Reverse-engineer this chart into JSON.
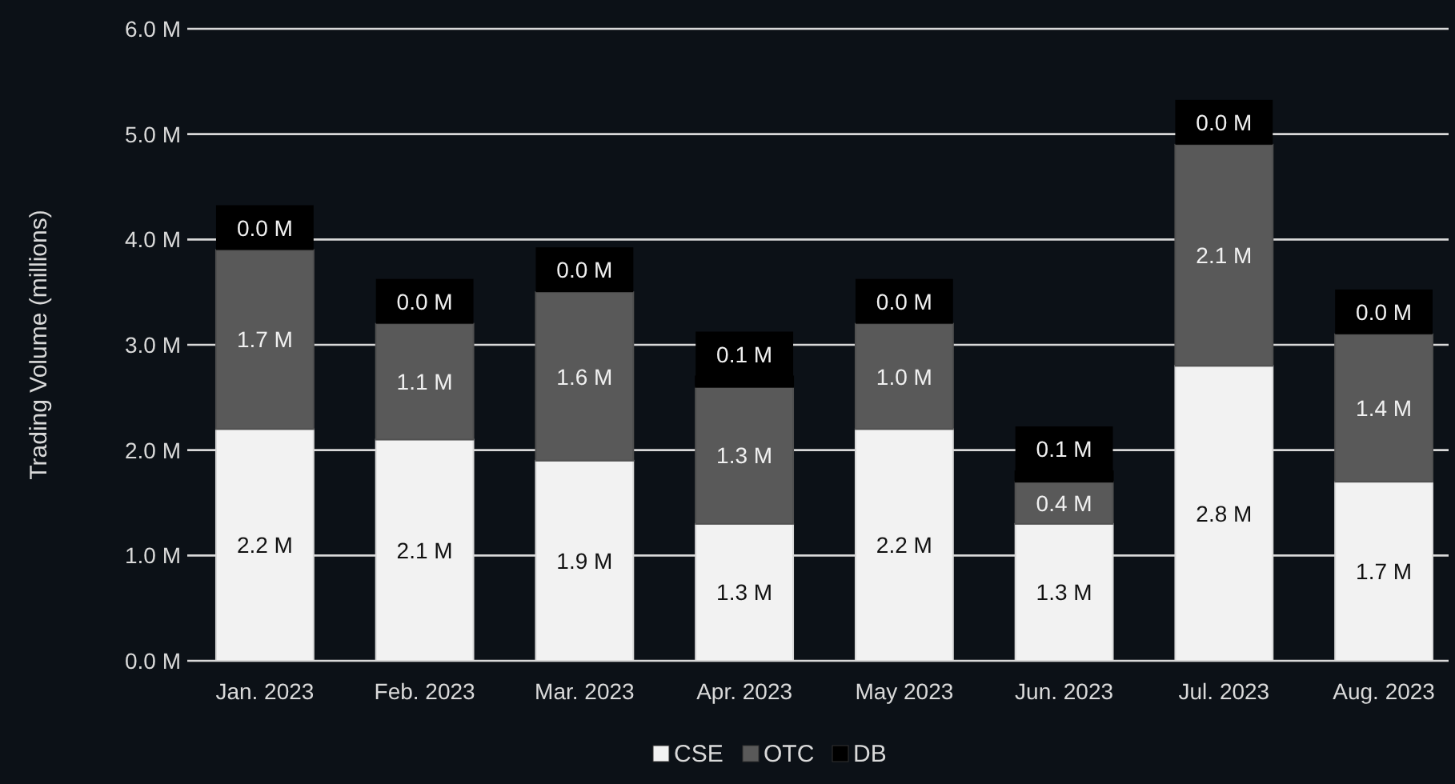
{
  "chart_data": {
    "type": "bar",
    "stacked": true,
    "ylabel": "Trading Volume (millions)",
    "categories": [
      "Jan. 2023",
      "Feb. 2023",
      "Mar. 2023",
      "Apr. 2023",
      "May 2023",
      "Jun. 2023",
      "Jul. 2023",
      "Aug. 2023"
    ],
    "series": [
      {
        "name": "CSE",
        "color": "#f2f2f2",
        "values": [
          2.2,
          2.1,
          1.9,
          1.3,
          2.2,
          1.3,
          2.8,
          1.7
        ],
        "value_labels": [
          "2.2 M",
          "2.1 M",
          "1.9 M",
          "1.3 M",
          "2.2 M",
          "1.3 M",
          "2.8 M",
          "1.7 M"
        ]
      },
      {
        "name": "OTC",
        "color": "#595959",
        "values": [
          1.7,
          1.1,
          1.6,
          1.3,
          1.0,
          0.4,
          2.1,
          1.4
        ],
        "value_labels": [
          "1.7 M",
          "1.1 M",
          "1.6 M",
          "1.3 M",
          "1.0 M",
          "0.4 M",
          "2.1 M",
          "1.4 M"
        ]
      },
      {
        "name": "DB",
        "color": "#000000",
        "values": [
          0.0,
          0.0,
          0.0,
          0.1,
          0.0,
          0.1,
          0.0,
          0.0
        ],
        "value_labels": [
          "0.0 M",
          "0.0 M",
          "0.0 M",
          "0.1 M",
          "0.0 M",
          "0.1 M",
          "0.0 M",
          "0.0 M"
        ]
      }
    ],
    "ylim": [
      0,
      6
    ],
    "yticks": [
      {
        "value": 0,
        "label": "0.0 M"
      },
      {
        "value": 1,
        "label": "1.0 M"
      },
      {
        "value": 2,
        "label": "2.0 M"
      },
      {
        "value": 3,
        "label": "3.0 M"
      },
      {
        "value": 4,
        "label": "4.0 M"
      },
      {
        "value": 5,
        "label": "5.0 M"
      },
      {
        "value": 6,
        "label": "6.0 M"
      }
    ],
    "grid": "y",
    "legend": "bottom"
  }
}
